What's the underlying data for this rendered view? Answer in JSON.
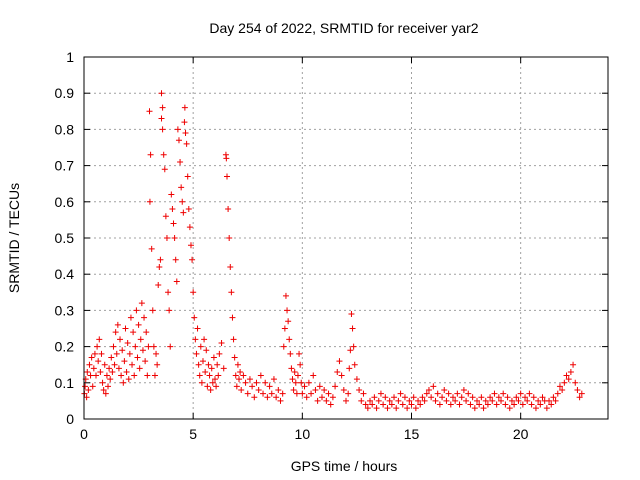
{
  "chart_data": {
    "type": "scatter",
    "title": "Day 254 of 2022, SRMTID for receiver yar2",
    "xlabel": "GPS time / hours",
    "ylabel": "SRMTID / TECUs",
    "xlim": [
      0,
      24
    ],
    "ylim": [
      0,
      1
    ],
    "xticks": [
      0,
      5,
      10,
      15,
      20
    ],
    "yticks": [
      0,
      0.1,
      0.2,
      0.3,
      0.4,
      0.5,
      0.6,
      0.7,
      0.8,
      0.9,
      1
    ],
    "grid": true,
    "marker": "+",
    "series": [
      {
        "name": "SRMTID",
        "color": "#ee0000",
        "points": [
          [
            0.02,
            0.07
          ],
          [
            0.05,
            0.09
          ],
          [
            0.08,
            0.11
          ],
          [
            0.12,
            0.06
          ],
          [
            0.15,
            0.13
          ],
          [
            0.2,
            0.08
          ],
          [
            0.25,
            0.15
          ],
          [
            0.3,
            0.12
          ],
          [
            0.35,
            0.17
          ],
          [
            0.4,
            0.09
          ],
          [
            0.45,
            0.14
          ],
          [
            0.5,
            0.18
          ],
          [
            0.55,
            0.12
          ],
          [
            0.6,
            0.2
          ],
          [
            0.65,
            0.16
          ],
          [
            0.7,
            0.22
          ],
          [
            0.75,
            0.13
          ],
          [
            0.8,
            0.18
          ],
          [
            0.85,
            0.1
          ],
          [
            0.9,
            0.08
          ],
          [
            0.95,
            0.15
          ],
          [
            1.0,
            0.07
          ],
          [
            1.05,
            0.12
          ],
          [
            1.1,
            0.09
          ],
          [
            1.15,
            0.14
          ],
          [
            1.2,
            0.11
          ],
          [
            1.25,
            0.17
          ],
          [
            1.3,
            0.13
          ],
          [
            1.35,
            0.2
          ],
          [
            1.4,
            0.15
          ],
          [
            1.45,
            0.24
          ],
          [
            1.5,
            0.18
          ],
          [
            1.55,
            0.26
          ],
          [
            1.6,
            0.14
          ],
          [
            1.65,
            0.22
          ],
          [
            1.7,
            0.12
          ],
          [
            1.75,
            0.19
          ],
          [
            1.8,
            0.1
          ],
          [
            1.85,
            0.16
          ],
          [
            1.9,
            0.25
          ],
          [
            1.95,
            0.13
          ],
          [
            2.0,
            0.21
          ],
          [
            2.05,
            0.11
          ],
          [
            2.1,
            0.18
          ],
          [
            2.15,
            0.28
          ],
          [
            2.2,
            0.15
          ],
          [
            2.25,
            0.24
          ],
          [
            2.3,
            0.12
          ],
          [
            2.35,
            0.2
          ],
          [
            2.4,
            0.3
          ],
          [
            2.45,
            0.17
          ],
          [
            2.5,
            0.26
          ],
          [
            2.55,
            0.14
          ],
          [
            2.6,
            0.22
          ],
          [
            2.65,
            0.32
          ],
          [
            2.7,
            0.19
          ],
          [
            2.75,
            0.28
          ],
          [
            2.8,
            0.16
          ],
          [
            2.85,
            0.24
          ],
          [
            2.9,
            0.12
          ],
          [
            2.95,
            0.2
          ],
          [
            3.0,
            0.85
          ],
          [
            3.02,
            0.6
          ],
          [
            3.05,
            0.73
          ],
          [
            3.1,
            0.47
          ],
          [
            3.15,
            0.3
          ],
          [
            3.2,
            0.2
          ],
          [
            3.25,
            0.12
          ],
          [
            3.3,
            0.18
          ],
          [
            3.35,
            0.15
          ],
          [
            3.4,
            0.37
          ],
          [
            3.45,
            0.42
          ],
          [
            3.5,
            0.44
          ],
          [
            3.55,
            0.83
          ],
          [
            3.55,
            0.9
          ],
          [
            3.6,
            0.86
          ],
          [
            3.6,
            0.8
          ],
          [
            3.65,
            0.73
          ],
          [
            3.7,
            0.69
          ],
          [
            3.75,
            0.56
          ],
          [
            3.8,
            0.5
          ],
          [
            3.85,
            0.35
          ],
          [
            3.9,
            0.3
          ],
          [
            3.95,
            0.2
          ],
          [
            4.0,
            0.62
          ],
          [
            4.05,
            0.58
          ],
          [
            4.1,
            0.54
          ],
          [
            4.15,
            0.5
          ],
          [
            4.2,
            0.44
          ],
          [
            4.25,
            0.38
          ],
          [
            4.3,
            0.8
          ],
          [
            4.35,
            0.77
          ],
          [
            4.4,
            0.71
          ],
          [
            4.45,
            0.64
          ],
          [
            4.5,
            0.6
          ],
          [
            4.55,
            0.57
          ],
          [
            4.6,
            0.82
          ],
          [
            4.62,
            0.86
          ],
          [
            4.65,
            0.79
          ],
          [
            4.7,
            0.76
          ],
          [
            4.75,
            0.67
          ],
          [
            4.8,
            0.58
          ],
          [
            4.85,
            0.53
          ],
          [
            4.9,
            0.48
          ],
          [
            4.95,
            0.44
          ],
          [
            5.0,
            0.35
          ],
          [
            5.05,
            0.28
          ],
          [
            5.1,
            0.22
          ],
          [
            5.15,
            0.18
          ],
          [
            5.2,
            0.25
          ],
          [
            5.25,
            0.15
          ],
          [
            5.3,
            0.12
          ],
          [
            5.35,
            0.2
          ],
          [
            5.4,
            0.1
          ],
          [
            5.45,
            0.16
          ],
          [
            5.5,
            0.22
          ],
          [
            5.55,
            0.13
          ],
          [
            5.6,
            0.19
          ],
          [
            5.65,
            0.09
          ],
          [
            5.7,
            0.15
          ],
          [
            5.75,
            0.12
          ],
          [
            5.8,
            0.08
          ],
          [
            5.85,
            0.14
          ],
          [
            5.9,
            0.1
          ],
          [
            5.95,
            0.17
          ],
          [
            6.0,
            0.11
          ],
          [
            6.05,
            0.09
          ],
          [
            6.1,
            0.15
          ],
          [
            6.15,
            0.12
          ],
          [
            6.2,
            0.18
          ],
          [
            6.3,
            0.21
          ],
          [
            6.4,
            0.14
          ],
          [
            6.5,
            0.73
          ],
          [
            6.52,
            0.72
          ],
          [
            6.55,
            0.67
          ],
          [
            6.6,
            0.58
          ],
          [
            6.65,
            0.5
          ],
          [
            6.7,
            0.42
          ],
          [
            6.75,
            0.35
          ],
          [
            6.8,
            0.28
          ],
          [
            6.85,
            0.22
          ],
          [
            6.9,
            0.17
          ],
          [
            6.95,
            0.12
          ],
          [
            7.0,
            0.09
          ],
          [
            7.05,
            0.15
          ],
          [
            7.1,
            0.11
          ],
          [
            7.15,
            0.13
          ],
          [
            7.2,
            0.08
          ],
          [
            7.3,
            0.12
          ],
          [
            7.4,
            0.1
          ],
          [
            7.5,
            0.07
          ],
          [
            7.6,
            0.11
          ],
          [
            7.7,
            0.09
          ],
          [
            7.8,
            0.06
          ],
          [
            7.9,
            0.1
          ],
          [
            8.0,
            0.08
          ],
          [
            8.1,
            0.12
          ],
          [
            8.2,
            0.07
          ],
          [
            8.3,
            0.1
          ],
          [
            8.4,
            0.06
          ],
          [
            8.5,
            0.09
          ],
          [
            8.6,
            0.07
          ],
          [
            8.7,
            0.11
          ],
          [
            8.8,
            0.06
          ],
          [
            8.9,
            0.08
          ],
          [
            9.0,
            0.05
          ],
          [
            9.1,
            0.07
          ],
          [
            9.15,
            0.2
          ],
          [
            9.2,
            0.25
          ],
          [
            9.25,
            0.34
          ],
          [
            9.3,
            0.3
          ],
          [
            9.35,
            0.27
          ],
          [
            9.4,
            0.22
          ],
          [
            9.45,
            0.18
          ],
          [
            9.5,
            0.14
          ],
          [
            9.55,
            0.11
          ],
          [
            9.6,
            0.08
          ],
          [
            9.65,
            0.13
          ],
          [
            9.7,
            0.1
          ],
          [
            9.75,
            0.07
          ],
          [
            9.8,
            0.12
          ],
          [
            9.85,
            0.18
          ],
          [
            9.9,
            0.15
          ],
          [
            9.95,
            0.1
          ],
          [
            10.0,
            0.07
          ],
          [
            10.1,
            0.09
          ],
          [
            10.2,
            0.06
          ],
          [
            10.3,
            0.1
          ],
          [
            10.4,
            0.07
          ],
          [
            10.5,
            0.12
          ],
          [
            10.6,
            0.08
          ],
          [
            10.7,
            0.05
          ],
          [
            10.8,
            0.09
          ],
          [
            10.9,
            0.06
          ],
          [
            11.0,
            0.08
          ],
          [
            11.1,
            0.05
          ],
          [
            11.2,
            0.07
          ],
          [
            11.3,
            0.04
          ],
          [
            11.4,
            0.06
          ],
          [
            11.5,
            0.09
          ],
          [
            11.6,
            0.13
          ],
          [
            11.7,
            0.16
          ],
          [
            11.8,
            0.12
          ],
          [
            11.9,
            0.08
          ],
          [
            12.0,
            0.05
          ],
          [
            12.1,
            0.07
          ],
          [
            12.15,
            0.14
          ],
          [
            12.2,
            0.19
          ],
          [
            12.25,
            0.29
          ],
          [
            12.3,
            0.25
          ],
          [
            12.35,
            0.2
          ],
          [
            12.4,
            0.15
          ],
          [
            12.5,
            0.11
          ],
          [
            12.6,
            0.08
          ],
          [
            12.7,
            0.05
          ],
          [
            12.8,
            0.07
          ],
          [
            12.9,
            0.04
          ],
          [
            13.0,
            0.03
          ],
          [
            13.1,
            0.05
          ],
          [
            13.2,
            0.04
          ],
          [
            13.3,
            0.06
          ],
          [
            13.4,
            0.03
          ],
          [
            13.5,
            0.05
          ],
          [
            13.6,
            0.07
          ],
          [
            13.7,
            0.04
          ],
          [
            13.8,
            0.06
          ],
          [
            13.9,
            0.03
          ],
          [
            14.0,
            0.05
          ],
          [
            14.1,
            0.04
          ],
          [
            14.2,
            0.06
          ],
          [
            14.3,
            0.03
          ],
          [
            14.4,
            0.05
          ],
          [
            14.5,
            0.07
          ],
          [
            14.6,
            0.04
          ],
          [
            14.7,
            0.06
          ],
          [
            14.8,
            0.03
          ],
          [
            14.9,
            0.05
          ],
          [
            15.0,
            0.04
          ],
          [
            15.1,
            0.06
          ],
          [
            15.2,
            0.03
          ],
          [
            15.3,
            0.05
          ],
          [
            15.4,
            0.04
          ],
          [
            15.5,
            0.06
          ],
          [
            15.6,
            0.05
          ],
          [
            15.7,
            0.07
          ],
          [
            15.8,
            0.08
          ],
          [
            15.9,
            0.06
          ],
          [
            16.0,
            0.09
          ],
          [
            16.1,
            0.05
          ],
          [
            16.2,
            0.07
          ],
          [
            16.3,
            0.04
          ],
          [
            16.4,
            0.06
          ],
          [
            16.5,
            0.08
          ],
          [
            16.6,
            0.05
          ],
          [
            16.7,
            0.07
          ],
          [
            16.8,
            0.04
          ],
          [
            16.9,
            0.06
          ],
          [
            17.0,
            0.05
          ],
          [
            17.1,
            0.07
          ],
          [
            17.2,
            0.04
          ],
          [
            17.3,
            0.06
          ],
          [
            17.4,
            0.08
          ],
          [
            17.5,
            0.05
          ],
          [
            17.6,
            0.07
          ],
          [
            17.7,
            0.04
          ],
          [
            17.8,
            0.06
          ],
          [
            17.9,
            0.03
          ],
          [
            18.0,
            0.05
          ],
          [
            18.1,
            0.04
          ],
          [
            18.2,
            0.06
          ],
          [
            18.3,
            0.03
          ],
          [
            18.4,
            0.05
          ],
          [
            18.5,
            0.04
          ],
          [
            18.6,
            0.06
          ],
          [
            18.7,
            0.05
          ],
          [
            18.8,
            0.07
          ],
          [
            18.9,
            0.04
          ],
          [
            19.0,
            0.06
          ],
          [
            19.1,
            0.05
          ],
          [
            19.2,
            0.07
          ],
          [
            19.3,
            0.04
          ],
          [
            19.4,
            0.06
          ],
          [
            19.5,
            0.03
          ],
          [
            19.6,
            0.05
          ],
          [
            19.7,
            0.04
          ],
          [
            19.8,
            0.06
          ],
          [
            19.9,
            0.05
          ],
          [
            20.0,
            0.07
          ],
          [
            20.1,
            0.04
          ],
          [
            20.2,
            0.06
          ],
          [
            20.3,
            0.05
          ],
          [
            20.4,
            0.07
          ],
          [
            20.5,
            0.04
          ],
          [
            20.6,
            0.06
          ],
          [
            20.7,
            0.03
          ],
          [
            20.8,
            0.05
          ],
          [
            20.9,
            0.04
          ],
          [
            21.0,
            0.06
          ],
          [
            21.1,
            0.05
          ],
          [
            21.2,
            0.03
          ],
          [
            21.3,
            0.05
          ],
          [
            21.4,
            0.04
          ],
          [
            21.5,
            0.06
          ],
          [
            21.6,
            0.05
          ],
          [
            21.7,
            0.07
          ],
          [
            21.8,
            0.09
          ],
          [
            21.9,
            0.08
          ],
          [
            22.0,
            0.1
          ],
          [
            22.1,
            0.12
          ],
          [
            22.2,
            0.11
          ],
          [
            22.3,
            0.13
          ],
          [
            22.4,
            0.15
          ],
          [
            22.5,
            0.1
          ],
          [
            22.6,
            0.08
          ],
          [
            22.7,
            0.06
          ],
          [
            22.8,
            0.07
          ]
        ]
      }
    ]
  }
}
